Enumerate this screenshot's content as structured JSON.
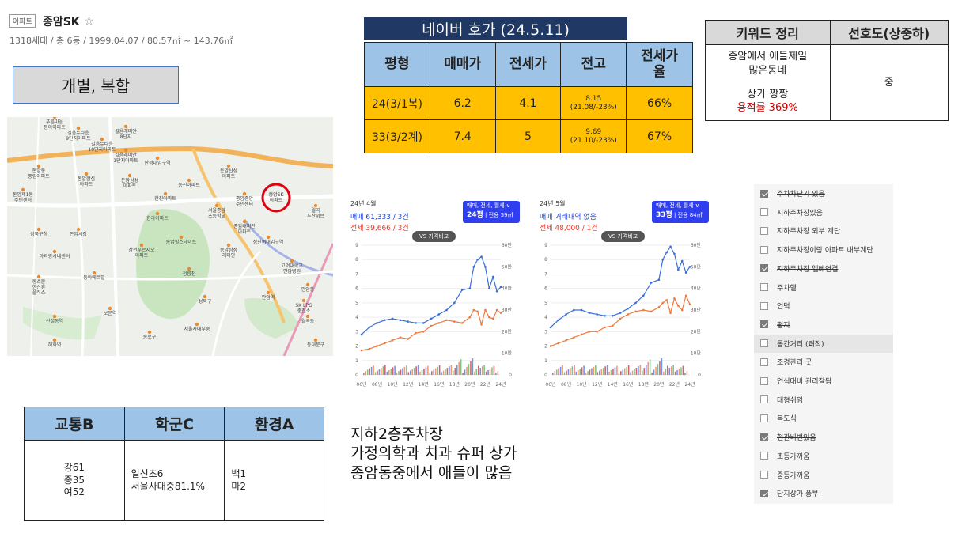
{
  "header": {
    "tag": "아파트",
    "name": "종암SK",
    "info": "1318세대 / 총 6동 / 1999.04.07 / 80.57㎡ ~ 143.76㎡"
  },
  "type_box": "개별, 복합",
  "map": {
    "marker_label": "종암SK\n아파트",
    "labels": [
      "푸른마을\n동아아파트",
      "길음뉴타운\n9단지아파트",
      "길음뉴타운\n10단지아파트",
      "길음래미안\n8단지",
      "길음래미안\n1단지아파트",
      "돈암동\n풍림아파트",
      "돈암한신\n아파트",
      "돈암삼성\n아파트",
      "동신아파트",
      "돈암산성\n아파트",
      "한진아파트",
      "성북구청",
      "돈암시장",
      "아리랑시네센터",
      "돈암제1동\n주민센터",
      "한라아파트",
      "동소문\n한신휴\n플러스",
      "동아에코빌",
      "삼선푸르지오\n아파트",
      "종암래미안\n아파트",
      "고려대학교\n안암병원",
      "안암동",
      "정릉천",
      "성북구",
      "월곡동",
      "안암역",
      "보문역",
      "신설동역",
      "종암중앙\n주민센터",
      "종암삼성\n래미안",
      "종암힐스테이트",
      "서울종암\n초등학교",
      "한성대입구역",
      "성신여대입구역",
      "혜화역",
      "종로구",
      "동대문구",
      "SK LPG\n충전소",
      "서울사대부중",
      "월곡\n두산위브"
    ]
  },
  "naver": {
    "title": "네이버 호가 (24.5.11)",
    "headers": [
      "평형",
      "매매가",
      "전세가",
      "전고",
      "전세가\n율"
    ],
    "rows": [
      {
        "size": "24(3/1복)",
        "sale": "6.2",
        "jeonse": "4.1",
        "peak": "8.15\n(21.08/-23%)",
        "ratio": "66%"
      },
      {
        "size": "33(3/2계)",
        "sale": "7.4",
        "jeonse": "5",
        "peak": "9.69\n(21.10/-23%)",
        "ratio": "67%"
      }
    ]
  },
  "keywords": {
    "headers": [
      "키워드 정리",
      "선호도(상중하)"
    ],
    "line1": "종암에서 애들제일\n많은동네",
    "line2": "상가 짱짱",
    "line3": "용적률 369%",
    "preference": "중"
  },
  "chart_data": [
    {
      "type": "line",
      "month": "24년 4월",
      "sale_text": "매매 61,333 / 3건",
      "jeonse_text": "전세 39,666 / 3건",
      "button_title": "매매, 전세, 월세 ∨",
      "button_size": "24평",
      "button_area": "전용 59㎡",
      "vs_label": "VS 가격비교",
      "x_ticks": [
        "06년",
        "08년",
        "10년",
        "12년",
        "14년",
        "16년",
        "18년",
        "20년",
        "22년",
        "24년"
      ],
      "y_ticks_left": [
        "0",
        "1",
        "2",
        "3",
        "4",
        "5",
        "6",
        "7",
        "8",
        "9"
      ],
      "y_ticks_right": [
        "0",
        "10만",
        "20만",
        "30만",
        "40만",
        "50만",
        "60만"
      ],
      "ylim": [
        0,
        9
      ],
      "x": [
        2006,
        2007,
        2008,
        2009,
        2010,
        2011,
        2012,
        2013,
        2014,
        2015,
        2016,
        2017,
        2018,
        2019,
        2020,
        2020.5,
        2021,
        2021.5,
        2022,
        2022.5,
        2023,
        2023.5,
        2024
      ],
      "series": [
        {
          "name": "매매",
          "values": [
            2.8,
            3.3,
            3.6,
            3.8,
            3.9,
            3.8,
            3.7,
            3.6,
            3.6,
            3.9,
            4.2,
            4.5,
            5.0,
            5.9,
            6.0,
            7.5,
            8.0,
            8.2,
            7.5,
            6.0,
            6.8,
            5.8,
            6.1
          ]
        },
        {
          "name": "전세",
          "values": [
            1.7,
            1.8,
            2.0,
            2.2,
            2.4,
            2.6,
            2.5,
            2.9,
            3.0,
            3.4,
            3.6,
            3.8,
            3.7,
            3.6,
            4.0,
            4.5,
            4.4,
            3.5,
            4.5,
            4.0,
            3.9,
            4.5,
            4.3
          ]
        }
      ]
    },
    {
      "type": "line",
      "month": "24년 5월",
      "sale_text": "매매 거래내역 없음",
      "jeonse_text": "전세 48,000 / 1건",
      "button_title": "매매, 전세, 월세 ∨",
      "button_size": "33평",
      "button_area": "전용 84㎡",
      "vs_label": "VS 가격비교",
      "x_ticks": [
        "06년",
        "08년",
        "10년",
        "12년",
        "14년",
        "16년",
        "18년",
        "20년",
        "22년",
        "24년"
      ],
      "y_ticks_left": [
        "0",
        "1",
        "2",
        "3",
        "4",
        "5",
        "6",
        "7",
        "8",
        "9"
      ],
      "y_ticks_right": [
        "0",
        "10만",
        "20만",
        "30만",
        "40만",
        "50만",
        "60만"
      ],
      "ylim": [
        0,
        9
      ],
      "x": [
        2006,
        2007,
        2008,
        2009,
        2010,
        2011,
        2012,
        2013,
        2014,
        2015,
        2016,
        2017,
        2018,
        2019,
        2020,
        2020.5,
        2021,
        2021.5,
        2022,
        2022.5,
        2023,
        2023.5,
        2024
      ],
      "series": [
        {
          "name": "매매",
          "values": [
            3.3,
            3.8,
            4.2,
            4.5,
            4.5,
            4.3,
            4.2,
            4.1,
            4.1,
            4.3,
            4.6,
            5.0,
            5.5,
            6.4,
            6.6,
            8.0,
            8.5,
            8.9,
            8.4,
            7.3,
            7.9,
            7.1,
            7.5
          ]
        },
        {
          "name": "전세",
          "values": [
            2.0,
            2.2,
            2.4,
            2.6,
            2.8,
            3.0,
            3.0,
            3.3,
            3.4,
            3.9,
            4.2,
            4.4,
            4.5,
            4.4,
            4.7,
            5.0,
            5.2,
            4.3,
            5.3,
            4.8,
            4.5,
            5.5,
            4.9
          ]
        }
      ]
    }
  ],
  "tse": {
    "headers": [
      "교통B",
      "학군C",
      "환경A"
    ],
    "traffic": "강61\n종35\n여52",
    "school": "일신초6\n서울사대중81.1%",
    "environment": "백1\n마2"
  },
  "notes": [
    "지하2층주차장",
    "가정의학과 치과 슈퍼 상가",
    "종암동중에서 애들이 많음"
  ],
  "checklist": [
    {
      "label": "주차차단기 있음",
      "checked": true,
      "struck": true
    },
    {
      "label": "지하주차장있음",
      "checked": false,
      "struck": false
    },
    {
      "label": "지하주차장 외부 계단",
      "checked": false,
      "struck": false
    },
    {
      "label": "지하주차장이랑 아파트 내부계단",
      "checked": false,
      "struck": false
    },
    {
      "label": "지하주차장 엘베연결",
      "checked": true,
      "struck": true
    },
    {
      "label": "주차헬",
      "checked": false,
      "struck": false
    },
    {
      "label": "언덕",
      "checked": false,
      "struck": false
    },
    {
      "label": "평지",
      "checked": true,
      "struck": true
    },
    {
      "label": "동간거리 (쾌적)",
      "checked": false,
      "struck": false
    },
    {
      "label": "조경관리 굿",
      "checked": false,
      "struck": false
    },
    {
      "label": "연식대비 관리잘됨",
      "checked": false,
      "struck": false
    },
    {
      "label": "대형쉬임",
      "checked": false,
      "struck": false
    },
    {
      "label": "복도식",
      "checked": false,
      "struck": false
    },
    {
      "label": "현관비번있음",
      "checked": true,
      "struck": true
    },
    {
      "label": "초등가까움",
      "checked": false,
      "struck": false
    },
    {
      "label": "중등가까움",
      "checked": false,
      "struck": false
    },
    {
      "label": "단지상가 풍부",
      "checked": true,
      "struck": true
    }
  ],
  "colors": {
    "navy": "#1f3864",
    "blue_header": "#9dc3e6",
    "orange_cell": "#ffc000",
    "sale_line": "#3a6fd8",
    "jeonse_line": "#f07a3c",
    "red": "#d00000"
  }
}
